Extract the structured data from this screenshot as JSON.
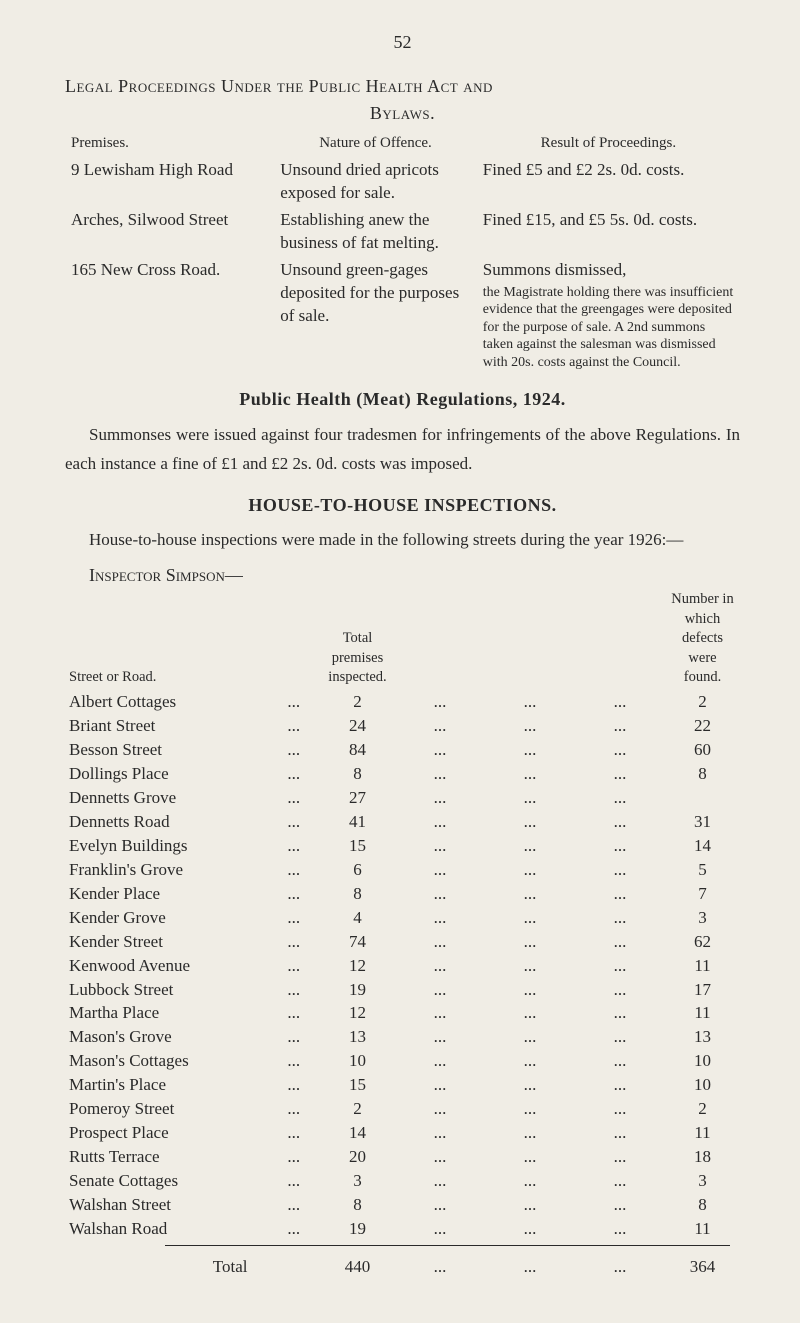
{
  "page_number": "52",
  "legal_section": {
    "title": "Legal Proceedings Under the Public Health Act and",
    "subtitle": "Bylaws.",
    "headers": {
      "premises": "Premises.",
      "nature": "Nature of Offence.",
      "result": "Result of Proceedings."
    },
    "rows": [
      {
        "premises": "9 Lewisham High Road",
        "nature": "Unsound dried apricots exposed for sale.",
        "result": "Fined £5 and £2 2s. 0d. costs."
      },
      {
        "premises": "Arches, Silwood Street",
        "nature": "Establishing anew the business of fat melting.",
        "result": "Fined £15, and £5 5s. 0d. costs."
      },
      {
        "premises": "165 New Cross Road.",
        "nature": "Unsound green-gages deposited for the purposes of sale.",
        "result": "Summons dismissed,",
        "result_note": "the Magistrate holding there was insufficient evidence that the greengages were deposited for the purpose of sale. A 2nd summons taken against the salesman was dismissed with 20s. costs against the Council."
      }
    ]
  },
  "regulations": {
    "heading": "Public Health (Meat) Regulations, 1924.",
    "text": "Summonses were issued against four tradesmen for infringements of the above Regulations. In each instance a fine of £1 and £2 2s. 0d. costs was imposed."
  },
  "house_section": {
    "heading": "HOUSE-TO-HOUSE INSPECTIONS.",
    "intro": "House-to-house inspections were made in the following streets during the year 1926:—",
    "inspector": "Inspector Simpson—",
    "headers": {
      "street": "Street or Road.",
      "premises": "Total premises inspected.",
      "defects": "Number in which defects were found."
    },
    "rows": [
      {
        "street": "Albert Cottages",
        "premises": "2",
        "defects": "2"
      },
      {
        "street": "Briant Street",
        "premises": "24",
        "defects": "22"
      },
      {
        "street": "Besson Street",
        "premises": "84",
        "defects": "60"
      },
      {
        "street": "Dollings Place",
        "premises": "8",
        "defects": "8"
      },
      {
        "street": "Dennetts Grove",
        "premises": "27",
        "defects": ""
      },
      {
        "street": "Dennetts Road",
        "premises": "41",
        "defects": "31"
      },
      {
        "street": "Evelyn Buildings",
        "premises": "15",
        "defects": "14"
      },
      {
        "street": "Franklin's Grove",
        "premises": "6",
        "defects": "5"
      },
      {
        "street": "Kender Place",
        "premises": "8",
        "defects": "7"
      },
      {
        "street": "Kender Grove",
        "premises": "4",
        "defects": "3"
      },
      {
        "street": "Kender Street",
        "premises": "74",
        "defects": "62"
      },
      {
        "street": "Kenwood Avenue",
        "premises": "12",
        "defects": "11"
      },
      {
        "street": "Lubbock Street",
        "premises": "19",
        "defects": "17"
      },
      {
        "street": "Martha Place",
        "premises": "12",
        "defects": "11"
      },
      {
        "street": "Mason's Grove",
        "premises": "13",
        "defects": "13"
      },
      {
        "street": "Mason's Cottages",
        "premises": "10",
        "defects": "10"
      },
      {
        "street": "Martin's Place",
        "premises": "15",
        "defects": "10"
      },
      {
        "street": "Pomeroy Street",
        "premises": "2",
        "defects": "2"
      },
      {
        "street": "Prospect Place",
        "premises": "14",
        "defects": "11"
      },
      {
        "street": "Rutts Terrace",
        "premises": "20",
        "defects": "18"
      },
      {
        "street": "Senate Cottages",
        "premises": "3",
        "defects": "3"
      },
      {
        "street": "Walshan Street",
        "premises": "8",
        "defects": "8"
      },
      {
        "street": "Walshan Road",
        "premises": "19",
        "defects": "11"
      }
    ],
    "total": {
      "label": "Total",
      "premises": "440",
      "defects": "364"
    }
  },
  "ellipsis": "..."
}
